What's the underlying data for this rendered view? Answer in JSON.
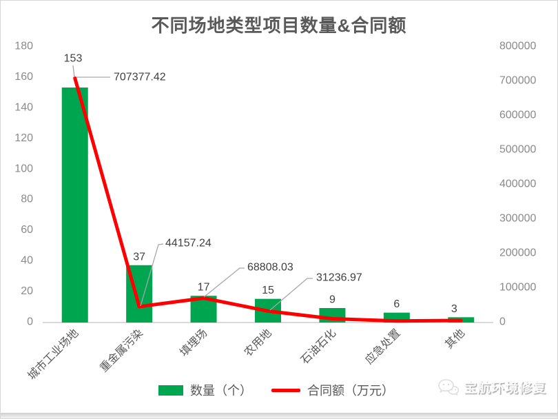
{
  "chart_data": {
    "type": "bar",
    "subtype": "combo-bar-line",
    "title": "不同场地类型项目数量&合同额",
    "categories": [
      "城市工业场地",
      "重金属污染",
      "填埋场",
      "农用地",
      "石油石化",
      "应急处置",
      "其他"
    ],
    "series": [
      {
        "name": "数量（个）",
        "type": "bar",
        "axis": "left",
        "color": "#00A64F",
        "values": [
          153,
          37,
          17,
          15,
          9,
          6,
          3
        ],
        "value_labels": [
          "153",
          "37",
          "17",
          "15",
          "9",
          "6",
          "3"
        ]
      },
      {
        "name": "合同额（万元）",
        "type": "line",
        "axis": "right",
        "color": "#FE0000",
        "values": [
          707377.42,
          44157.24,
          68808.03,
          31236.97,
          9000,
          2500,
          4000
        ],
        "values_estimated": [
          false,
          false,
          false,
          false,
          true,
          true,
          true
        ],
        "shown_point_labels": {
          "0": "707377.42",
          "1": "44157.24",
          "2": "68808.03",
          "3": "31236.97"
        }
      }
    ],
    "left_axis": {
      "min": 0,
      "max": 180,
      "step": 20,
      "ticks": [
        0,
        20,
        40,
        60,
        80,
        100,
        120,
        140,
        160,
        180
      ]
    },
    "right_axis": {
      "min": 0,
      "max": 800000,
      "step": 100000,
      "ticks": [
        0,
        100000,
        200000,
        300000,
        400000,
        500000,
        600000,
        700000,
        800000
      ]
    },
    "grid": false,
    "legend": {
      "position": "bottom",
      "entries": [
        "数量（个）",
        "合同额（万元）"
      ]
    },
    "colors": {
      "title": "#595959",
      "axis_labels": "#8a8a8a",
      "data_labels": "#3f3f3f",
      "leader_lines": "#a6a6a6",
      "axis_line": "#d9d9d9",
      "category_labels": "#595959"
    }
  },
  "watermark": {
    "text": "宝航环境修复",
    "icon": "wechat-bubbles-icon"
  }
}
